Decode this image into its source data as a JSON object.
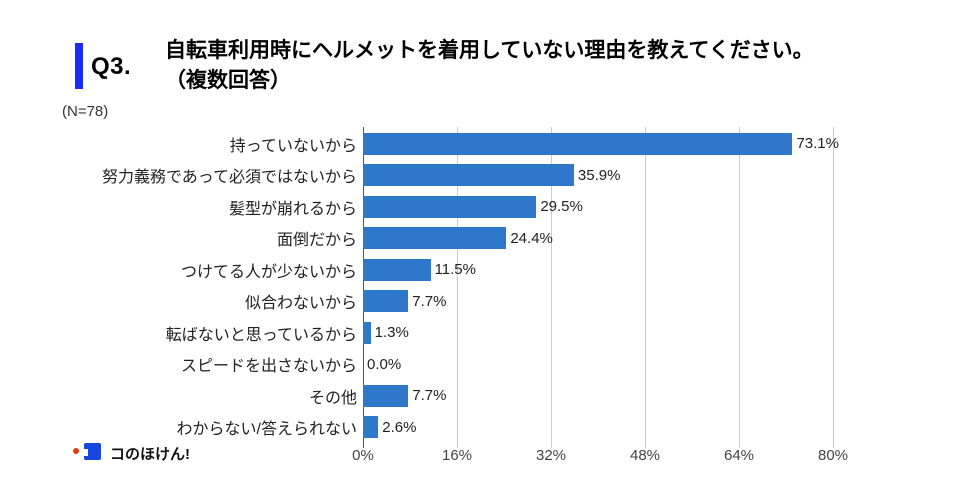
{
  "header": {
    "q_label": "Q3.",
    "title_line1": "自転車利用時にヘルメットを着用していない理由を教えてください。",
    "title_line2": "（複数回答）",
    "accent_color": "#1c2cf2"
  },
  "sample_label": "(N=78)",
  "chart_data": {
    "type": "bar",
    "orientation": "horizontal",
    "title": "自転車利用時にヘルメットを着用していない理由を教えてください。（複数回答）",
    "n": 78,
    "categories": [
      "持っていないから",
      "努力義務であって必須ではないから",
      "髪型が崩れるから",
      "面倒だから",
      "つけてる人が少ないから",
      "似合わないから",
      "転ばないと思っているから",
      "スピードを出さないから",
      "その他",
      "わからない/答えられない"
    ],
    "values": [
      73.1,
      35.9,
      29.5,
      24.4,
      11.5,
      7.7,
      1.3,
      0.0,
      7.7,
      2.6
    ],
    "value_labels": [
      "73.1%",
      "35.9%",
      "29.5%",
      "24.4%",
      "11.5%",
      "7.7%",
      "1.3%",
      "0.0%",
      "7.7%",
      "2.6%"
    ],
    "x_tick_values": [
      0,
      16,
      32,
      48,
      64,
      80
    ],
    "x_tick_labels": [
      "0%",
      "16%",
      "32%",
      "48%",
      "64%",
      "80%"
    ],
    "xlim": [
      0,
      80
    ],
    "grid": true,
    "legend": "none",
    "bar_color": "#2e78cc",
    "gridline_color": "#cccccc",
    "axis_color": "#555555"
  },
  "footer": {
    "logo_text": "コのほけん!"
  }
}
